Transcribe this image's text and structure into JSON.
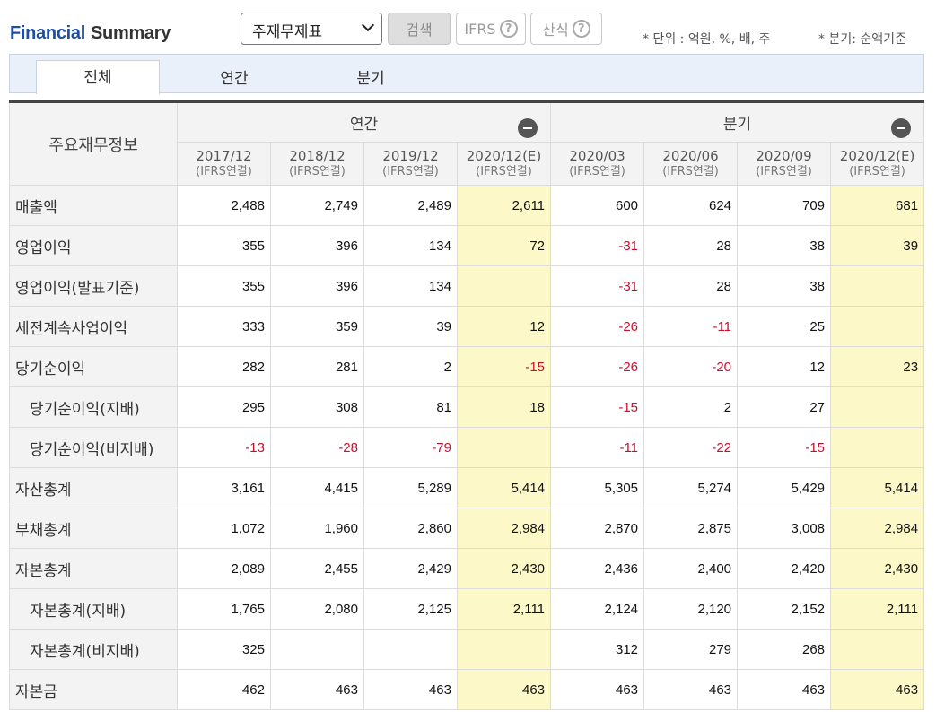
{
  "header": {
    "title_part1": "Financial",
    "title_part2": "Summary",
    "statement_select": "주재무제표",
    "search_label": "검색",
    "ifrs_label": "IFRS",
    "calc_label": "산식",
    "help_glyph": "?",
    "unit_note": "* 단위 : 억원, %, 배, 주",
    "quarter_note": "* 분기: 순액기준"
  },
  "tabs": [
    "전체",
    "연간",
    "분기"
  ],
  "table": {
    "row_header": "주요재무정보",
    "annual_group": "연간",
    "quarter_group": "분기",
    "periods": [
      {
        "label": "2017/12",
        "sub": "(IFRS연결)"
      },
      {
        "label": "2018/12",
        "sub": "(IFRS연결)"
      },
      {
        "label": "2019/12",
        "sub": "(IFRS연결)"
      },
      {
        "label": "2020/12(E)",
        "sub": "(IFRS연결)"
      },
      {
        "label": "2020/03",
        "sub": "(IFRS연결)"
      },
      {
        "label": "2020/06",
        "sub": "(IFRS연결)"
      },
      {
        "label": "2020/09",
        "sub": "(IFRS연결)"
      },
      {
        "label": "2020/12(E)",
        "sub": "(IFRS연결)"
      }
    ],
    "rows": [
      {
        "label": "매출액",
        "indent": false,
        "values": [
          "2,488",
          "2,749",
          "2,489",
          "2,611",
          "600",
          "624",
          "709",
          "681"
        ]
      },
      {
        "label": "영업이익",
        "indent": false,
        "values": [
          "355",
          "396",
          "134",
          "72",
          "-31",
          "28",
          "38",
          "39"
        ]
      },
      {
        "label": "영업이익(발표기준)",
        "indent": false,
        "values": [
          "355",
          "396",
          "134",
          "",
          "-31",
          "28",
          "38",
          ""
        ]
      },
      {
        "label": "세전계속사업이익",
        "indent": false,
        "values": [
          "333",
          "359",
          "39",
          "12",
          "-26",
          "-11",
          "25",
          ""
        ]
      },
      {
        "label": "당기순이익",
        "indent": false,
        "values": [
          "282",
          "281",
          "2",
          "-15",
          "-26",
          "-20",
          "12",
          "23"
        ]
      },
      {
        "label": "당기순이익(지배)",
        "indent": true,
        "values": [
          "295",
          "308",
          "81",
          "18",
          "-15",
          "2",
          "27",
          ""
        ]
      },
      {
        "label": "당기순이익(비지배)",
        "indent": true,
        "values": [
          "-13",
          "-28",
          "-79",
          "",
          "-11",
          "-22",
          "-15",
          ""
        ]
      },
      {
        "label": "자산총계",
        "indent": false,
        "values": [
          "3,161",
          "4,415",
          "5,289",
          "5,414",
          "5,305",
          "5,274",
          "5,429",
          "5,414"
        ]
      },
      {
        "label": "부채총계",
        "indent": false,
        "values": [
          "1,072",
          "1,960",
          "2,860",
          "2,984",
          "2,870",
          "2,875",
          "3,008",
          "2,984"
        ]
      },
      {
        "label": "자본총계",
        "indent": false,
        "values": [
          "2,089",
          "2,455",
          "2,429",
          "2,430",
          "2,436",
          "2,400",
          "2,420",
          "2,430"
        ]
      },
      {
        "label": "자본총계(지배)",
        "indent": true,
        "values": [
          "1,765",
          "2,080",
          "2,125",
          "2,111",
          "2,124",
          "2,120",
          "2,152",
          "2,111"
        ]
      },
      {
        "label": "자본총계(비지배)",
        "indent": true,
        "values": [
          "325",
          "",
          "",
          "",
          "312",
          "279",
          "268",
          ""
        ]
      },
      {
        "label": "자본금",
        "indent": false,
        "values": [
          "462",
          "463",
          "463",
          "463",
          "463",
          "463",
          "463",
          "463"
        ]
      }
    ]
  },
  "colors": {
    "title_accent": "#1f4ea1",
    "estimate_fill": "#fdf8c8",
    "negative": "#c8102e"
  }
}
